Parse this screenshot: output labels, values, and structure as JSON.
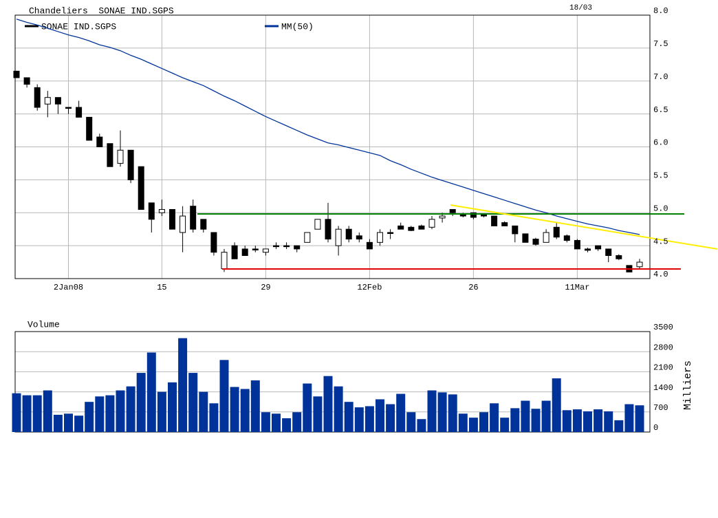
{
  "chart_data": [
    {
      "type": "candlestick",
      "title": "Chandeliers  SONAE IND.SGPS",
      "date": "18/03",
      "categories": [
        null,
        null,
        null,
        null,
        null,
        "2Jan08",
        null,
        null,
        null,
        null,
        null,
        null,
        null,
        null,
        "15",
        null,
        null,
        null,
        null,
        null,
        null,
        null,
        null,
        null,
        "29",
        null,
        null,
        null,
        null,
        null,
        null,
        null,
        null,
        null,
        "12Feb",
        null,
        null,
        null,
        null,
        null,
        null,
        null,
        null,
        null,
        "26",
        null,
        null,
        null,
        null,
        null,
        null,
        null,
        null,
        null,
        "11Mar",
        null,
        null,
        null,
        null,
        null,
        null
      ],
      "series": [
        {
          "name": "SONAE IND.SGPS",
          "color": "#000000",
          "open": [
            7.15,
            7.05,
            6.9,
            6.65,
            6.75,
            6.6,
            6.6,
            6.45,
            6.15,
            6.05,
            5.75,
            5.95,
            5.7,
            5.15,
            5.0,
            5.05,
            4.7,
            5.1,
            4.9,
            4.7,
            4.15,
            4.5,
            4.45,
            4.45,
            4.4,
            4.5,
            4.5,
            4.5,
            4.55,
            4.75,
            4.9,
            4.5,
            4.75,
            4.65,
            4.55,
            4.55,
            4.7,
            4.8,
            4.78,
            4.8,
            4.78,
            4.92,
            5.05,
            4.98,
            5.0,
            4.97,
            4.95,
            4.85,
            4.8,
            4.68,
            4.6,
            4.55,
            4.78,
            4.65,
            4.58,
            4.45,
            4.5,
            4.45,
            4.35,
            4.2,
            4.18
          ],
          "high": [
            7.15,
            7.05,
            6.95,
            6.85,
            6.75,
            6.6,
            6.7,
            6.45,
            6.2,
            6.05,
            6.25,
            5.95,
            5.7,
            5.15,
            5.2,
            5.05,
            5.1,
            5.2,
            4.9,
            4.7,
            4.45,
            4.55,
            4.5,
            4.5,
            4.45,
            4.55,
            4.55,
            4.5,
            4.7,
            4.9,
            5.15,
            4.8,
            4.8,
            4.7,
            4.6,
            4.75,
            4.75,
            4.85,
            4.8,
            4.82,
            4.95,
            5.0,
            5.05,
            5.0,
            5.0,
            4.98,
            4.95,
            4.87,
            4.8,
            4.68,
            4.62,
            4.75,
            4.85,
            4.67,
            4.6,
            4.47,
            4.5,
            4.45,
            4.37,
            4.2,
            4.3
          ],
          "low": [
            7.05,
            6.9,
            6.55,
            6.45,
            6.5,
            6.5,
            6.45,
            6.1,
            6.0,
            5.7,
            5.7,
            5.45,
            5.05,
            4.7,
            4.95,
            4.75,
            4.4,
            4.7,
            4.7,
            4.35,
            4.1,
            4.3,
            4.35,
            4.4,
            4.35,
            4.45,
            4.45,
            4.4,
            4.55,
            4.75,
            4.55,
            4.35,
            4.55,
            4.55,
            4.45,
            4.5,
            4.6,
            4.75,
            4.72,
            4.75,
            4.75,
            4.85,
            4.95,
            4.93,
            4.9,
            4.93,
            4.8,
            4.8,
            4.55,
            4.55,
            4.5,
            4.55,
            4.6,
            4.55,
            4.45,
            4.4,
            4.42,
            4.25,
            4.28,
            4.1,
            4.15
          ],
          "close": [
            7.05,
            6.95,
            6.6,
            6.75,
            6.65,
            6.6,
            6.45,
            6.1,
            6.0,
            5.7,
            5.95,
            5.5,
            5.05,
            4.9,
            5.05,
            4.75,
            4.95,
            4.75,
            4.75,
            4.4,
            4.4,
            4.3,
            4.35,
            4.45,
            4.45,
            4.5,
            4.5,
            4.45,
            4.7,
            4.9,
            4.6,
            4.75,
            4.6,
            4.6,
            4.45,
            4.7,
            4.7,
            4.75,
            4.73,
            4.75,
            4.9,
            4.95,
            5.0,
            4.95,
            4.93,
            4.95,
            4.8,
            4.8,
            4.68,
            4.55,
            4.52,
            4.7,
            4.63,
            4.58,
            4.45,
            4.43,
            4.45,
            4.35,
            4.3,
            4.1,
            4.25
          ]
        },
        {
          "name": "MM(50)",
          "type": "line",
          "color": "#003399",
          "values": [
            7.94,
            7.89,
            7.85,
            7.8,
            7.75,
            7.7,
            7.66,
            7.61,
            7.55,
            7.51,
            7.46,
            7.39,
            7.33,
            7.26,
            7.19,
            7.12,
            7.05,
            6.99,
            6.93,
            6.85,
            6.77,
            6.7,
            6.62,
            6.54,
            6.46,
            6.39,
            6.32,
            6.25,
            6.18,
            6.12,
            6.06,
            6.03,
            5.99,
            5.95,
            5.91,
            5.87,
            5.79,
            5.73,
            5.66,
            5.6,
            5.54,
            5.49,
            5.44,
            5.39,
            5.34,
            5.29,
            5.24,
            5.19,
            5.14,
            5.09,
            5.04,
            5.0,
            4.95,
            4.91,
            4.87,
            4.83,
            4.8,
            4.77,
            4.73,
            4.7,
            4.67
          ]
        }
      ],
      "ylim": [
        4,
        8
      ],
      "yticks": [
        {
          "value": 4,
          "label": "4.0"
        },
        4.5,
        {
          "value": 5,
          "label": "5.0"
        },
        5.5,
        {
          "value": 6,
          "label": "6.0"
        },
        6.5,
        {
          "value": 7,
          "label": "7.0"
        },
        7.5,
        {
          "value": 8,
          "label": "8.0"
        }
      ],
      "grid": true
    },
    {
      "type": "bar",
      "title": "Volume",
      "ylabel": "Milliers",
      "color": "#003399",
      "values": [
        1350,
        1280,
        1280,
        1450,
        600,
        640,
        570,
        1050,
        1240,
        1280,
        1450,
        1590,
        2060,
        2770,
        1400,
        1730,
        3270,
        2060,
        1400,
        1000,
        2510,
        1570,
        1500,
        1800,
        690,
        640,
        480,
        690,
        1690,
        1240,
        1950,
        1590,
        1050,
        860,
        900,
        1140,
        970,
        1330,
        690,
        450,
        1450,
        1380,
        1310,
        640,
        500,
        690,
        1000,
        500,
        830,
        1090,
        810,
        1090,
        1870,
        760,
        790,
        720,
        790,
        720,
        410,
        970,
        930
      ],
      "ylim": [
        0,
        3500
      ],
      "yticks": [
        0,
        700,
        1400,
        2100,
        2800,
        3500
      ],
      "grid": true
    }
  ]
}
